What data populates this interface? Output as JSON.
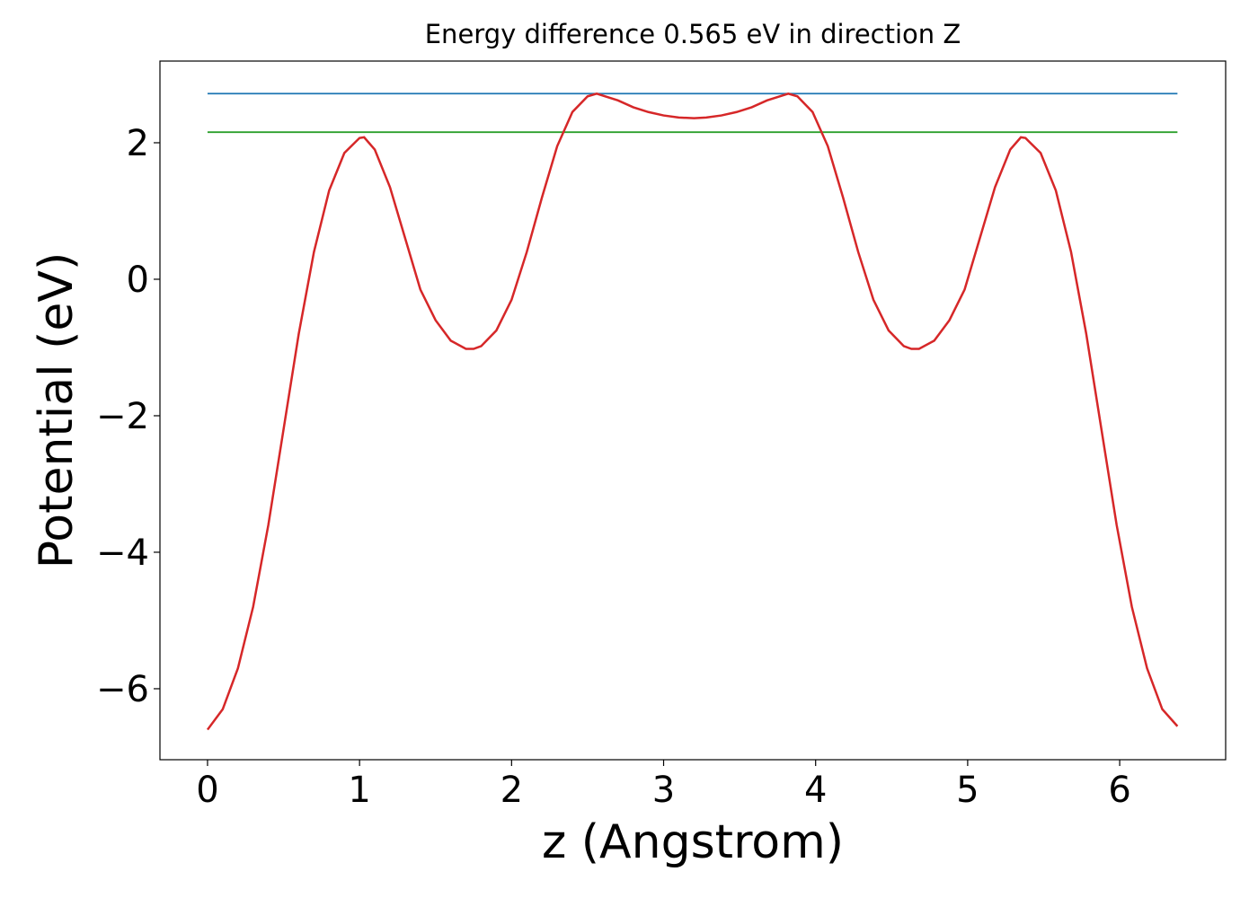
{
  "chart_data": {
    "type": "line",
    "title": "Energy difference 0.565 eV in direction Z",
    "x_label": "z (Angstrom)",
    "y_label": "Potential (eV)",
    "xlim": [
      -0.313,
      6.697
    ],
    "ylim": [
      -7.04,
      3.197
    ],
    "xticks": [
      0,
      1,
      2,
      3,
      4,
      5,
      6
    ],
    "yticks": [
      {
        "value": -6,
        "label": "−6"
      },
      {
        "value": -4,
        "label": "−4"
      },
      {
        "value": -2,
        "label": "−2"
      },
      0,
      2
    ],
    "series": [
      {
        "color": "#d62728",
        "x": [
          0,
          0.1,
          0.2,
          0.3,
          0.4,
          0.5,
          0.6,
          0.7,
          0.8,
          0.9,
          1.0,
          1.03,
          1.1,
          1.2,
          1.3,
          1.4,
          1.5,
          1.6,
          1.7,
          1.75,
          1.8,
          1.9,
          2.0,
          2.1,
          2.2,
          2.3,
          2.4,
          2.5,
          2.56,
          2.7,
          2.8,
          2.9,
          3.0,
          3.1,
          3.2,
          3.28,
          3.38,
          3.48,
          3.58,
          3.68,
          3.82,
          3.88,
          3.98,
          4.08,
          4.18,
          4.28,
          4.38,
          4.48,
          4.58,
          4.63,
          4.68,
          4.78,
          4.88,
          4.98,
          5.08,
          5.18,
          5.28,
          5.35,
          5.38,
          5.48,
          5.58,
          5.68,
          5.78,
          5.88,
          5.98,
          6.08,
          6.18,
          6.28,
          6.38
        ],
        "values": [
          -6.6,
          -6.3,
          -5.7,
          -4.8,
          -3.6,
          -2.2,
          -0.8,
          0.4,
          1.3,
          1.85,
          2.07,
          2.08,
          1.9,
          1.35,
          0.6,
          -0.15,
          -0.6,
          -0.9,
          -1.02,
          -1.02,
          -0.98,
          -0.75,
          -0.3,
          0.4,
          1.2,
          1.95,
          2.45,
          2.68,
          2.72,
          2.62,
          2.52,
          2.45,
          2.4,
          2.37,
          2.36,
          2.37,
          2.4,
          2.45,
          2.52,
          2.62,
          2.72,
          2.68,
          2.45,
          1.95,
          1.2,
          0.4,
          -0.3,
          -0.75,
          -0.98,
          -1.02,
          -1.02,
          -0.9,
          -0.6,
          -0.15,
          0.6,
          1.35,
          1.9,
          2.08,
          2.07,
          1.85,
          1.3,
          0.4,
          -0.8,
          -2.2,
          -3.6,
          -4.8,
          -5.7,
          -6.3,
          -6.55
        ]
      },
      {
        "color": "#1f77b4",
        "x": [
          0,
          6.38
        ],
        "values": [
          2.72,
          2.72
        ]
      },
      {
        "color": "#2ca02c",
        "x": [
          0,
          6.38
        ],
        "values": [
          2.155,
          2.155
        ]
      }
    ]
  }
}
